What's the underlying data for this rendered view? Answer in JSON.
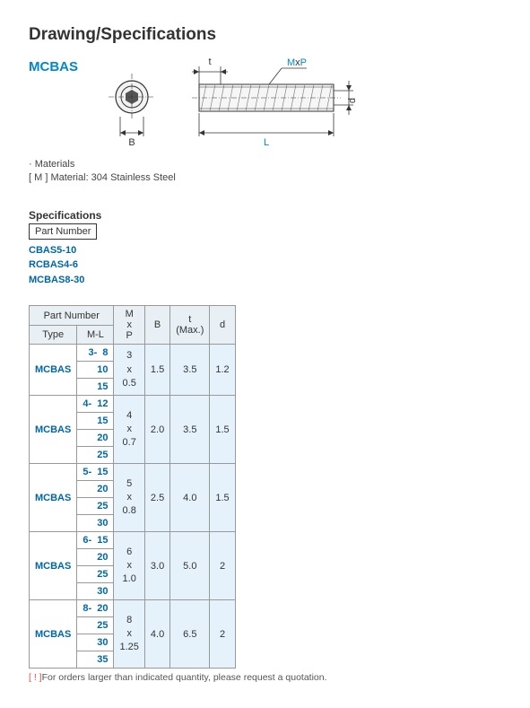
{
  "title": "Drawing/Specifications",
  "model": "MCBAS",
  "drawing": {
    "labels": {
      "B": "B",
      "L": "L",
      "t": "t",
      "d": "d",
      "MxP": "MxP"
    },
    "colors": {
      "accent": "#0088cc",
      "line": "#333333",
      "hatch": "#888888"
    }
  },
  "materials": {
    "heading": "· Materials",
    "line1": "[ M ] Material: 304 Stainless Steel"
  },
  "specs": {
    "heading": "Specifications",
    "partnum_label": "Part Number",
    "examples": [
      "CBAS5-10",
      "RCBAS4-6",
      "MCBAS8-30"
    ]
  },
  "table": {
    "head": {
      "partnum": "Part Number",
      "type": "Type",
      "ml": "M-L",
      "mxp": "M\nx\nP",
      "B": "B",
      "t": "t\n(Max.)",
      "d": "d"
    },
    "groups": [
      {
        "type": "MCBAS",
        "prefix": "3-",
        "ml": [
          "8",
          "10",
          "15"
        ],
        "mxp": "3\nx\n0.5",
        "B": "1.5",
        "t": "3.5",
        "d": "1.2"
      },
      {
        "type": "MCBAS",
        "prefix": "4-",
        "ml": [
          "12",
          "15",
          "20",
          "25"
        ],
        "mxp": "4\nx\n0.7",
        "B": "2.0",
        "t": "3.5",
        "d": "1.5"
      },
      {
        "type": "MCBAS",
        "prefix": "5-",
        "ml": [
          "15",
          "20",
          "25",
          "30"
        ],
        "mxp": "5\nx\n0.8",
        "B": "2.5",
        "t": "4.0",
        "d": "1.5"
      },
      {
        "type": "MCBAS",
        "prefix": "6-",
        "ml": [
          "15",
          "20",
          "25",
          "30"
        ],
        "mxp": "6\nx\n1.0",
        "B": "3.0",
        "t": "5.0",
        "d": "2"
      },
      {
        "type": "MCBAS",
        "prefix": "8-",
        "ml": [
          "20",
          "25",
          "30",
          "35"
        ],
        "mxp": "8\nx\n1.25",
        "B": "4.0",
        "t": "6.5",
        "d": "2"
      }
    ]
  },
  "footnote": {
    "marker": "[ ! ]",
    "text": "For orders larger than indicated quantity, please request a quotation."
  }
}
